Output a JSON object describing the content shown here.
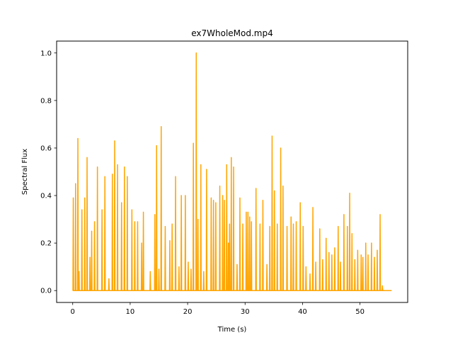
{
  "chart_data": {
    "type": "line",
    "title": "ex7WholeMod.mp4",
    "xlabel": "Time (s)",
    "ylabel": "Spectral Flux",
    "xlim": [
      -2.8,
      58.3
    ],
    "ylim": [
      -0.05,
      1.05
    ],
    "xticks": [
      0,
      10,
      20,
      30,
      40,
      50
    ],
    "xtick_labels": [
      "0",
      "10",
      "20",
      "30",
      "40",
      "50"
    ],
    "yticks": [
      0.0,
      0.2,
      0.4,
      0.6,
      0.8,
      1.0
    ],
    "ytick_labels": [
      "0.0",
      "0.2",
      "0.4",
      "0.6",
      "0.8",
      "1.0"
    ],
    "grid": false,
    "legend": "none",
    "series": [
      {
        "color": "#ffa500",
        "x_start": 0.0,
        "x_end": 55.5,
        "baseline": 0.0,
        "peaks": [
          [
            0.1,
            0.39
          ],
          [
            0.5,
            0.45
          ],
          [
            0.9,
            0.64
          ],
          [
            1.1,
            0.08
          ],
          [
            1.6,
            0.34
          ],
          [
            2.1,
            0.39
          ],
          [
            2.5,
            0.56
          ],
          [
            3.0,
            0.14
          ],
          [
            3.3,
            0.25
          ],
          [
            3.8,
            0.29
          ],
          [
            4.3,
            0.52
          ],
          [
            5.1,
            0.34
          ],
          [
            5.6,
            0.48
          ],
          [
            6.3,
            0.05
          ],
          [
            6.9,
            0.49
          ],
          [
            7.3,
            0.63
          ],
          [
            7.8,
            0.53
          ],
          [
            8.5,
            0.37
          ],
          [
            9.0,
            0.52
          ],
          [
            9.5,
            0.48
          ],
          [
            10.3,
            0.34
          ],
          [
            10.8,
            0.29
          ],
          [
            11.3,
            0.29
          ],
          [
            12.0,
            0.2
          ],
          [
            12.3,
            0.33
          ],
          [
            13.5,
            0.08
          ],
          [
            14.3,
            0.32
          ],
          [
            14.6,
            0.61
          ],
          [
            15.0,
            0.09
          ],
          [
            15.4,
            0.69
          ],
          [
            16.1,
            0.27
          ],
          [
            16.9,
            0.21
          ],
          [
            17.3,
            0.28
          ],
          [
            17.9,
            0.48
          ],
          [
            18.5,
            0.1
          ],
          [
            18.9,
            0.4
          ],
          [
            19.6,
            0.4
          ],
          [
            20.1,
            0.12
          ],
          [
            20.6,
            0.09
          ],
          [
            21.0,
            0.62
          ],
          [
            21.5,
            1.0
          ],
          [
            21.8,
            0.3
          ],
          [
            22.3,
            0.53
          ],
          [
            22.8,
            0.08
          ],
          [
            23.3,
            0.51
          ],
          [
            24.1,
            0.39
          ],
          [
            24.5,
            0.38
          ],
          [
            24.9,
            0.37
          ],
          [
            25.6,
            0.44
          ],
          [
            26.1,
            0.4
          ],
          [
            26.4,
            0.38
          ],
          [
            26.8,
            0.53
          ],
          [
            27.1,
            0.2
          ],
          [
            27.3,
            0.28
          ],
          [
            27.6,
            0.56
          ],
          [
            28.0,
            0.52
          ],
          [
            28.6,
            0.11
          ],
          [
            29.1,
            0.39
          ],
          [
            29.6,
            0.28
          ],
          [
            30.2,
            0.33
          ],
          [
            30.5,
            0.33
          ],
          [
            30.8,
            0.31
          ],
          [
            31.1,
            0.29
          ],
          [
            31.9,
            0.43
          ],
          [
            32.6,
            0.28
          ],
          [
            33.1,
            0.38
          ],
          [
            33.8,
            0.11
          ],
          [
            34.3,
            0.27
          ],
          [
            34.7,
            0.65
          ],
          [
            35.1,
            0.42
          ],
          [
            35.6,
            0.28
          ],
          [
            36.2,
            0.6
          ],
          [
            36.6,
            0.44
          ],
          [
            37.3,
            0.27
          ],
          [
            38.0,
            0.31
          ],
          [
            38.4,
            0.28
          ],
          [
            38.9,
            0.29
          ],
          [
            39.6,
            0.37
          ],
          [
            40.1,
            0.27
          ],
          [
            40.6,
            0.1
          ],
          [
            41.3,
            0.07
          ],
          [
            41.8,
            0.35
          ],
          [
            42.3,
            0.12
          ],
          [
            43.0,
            0.26
          ],
          [
            43.5,
            0.13
          ],
          [
            44.1,
            0.22
          ],
          [
            44.6,
            0.16
          ],
          [
            45.1,
            0.15
          ],
          [
            45.6,
            0.18
          ],
          [
            46.2,
            0.27
          ],
          [
            46.6,
            0.12
          ],
          [
            47.2,
            0.32
          ],
          [
            47.8,
            0.27
          ],
          [
            48.2,
            0.41
          ],
          [
            48.6,
            0.24
          ],
          [
            49.1,
            0.13
          ],
          [
            49.6,
            0.17
          ],
          [
            50.2,
            0.15
          ],
          [
            50.5,
            0.14
          ],
          [
            51.0,
            0.2
          ],
          [
            51.4,
            0.15
          ],
          [
            52.0,
            0.2
          ],
          [
            52.5,
            0.14
          ],
          [
            53.0,
            0.17
          ],
          [
            53.5,
            0.32
          ],
          [
            53.9,
            0.02
          ]
        ]
      }
    ]
  }
}
